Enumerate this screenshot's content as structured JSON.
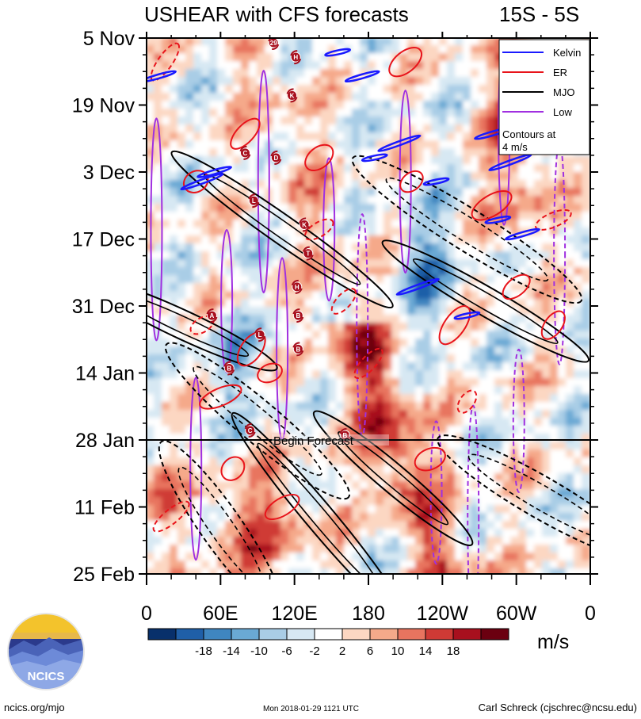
{
  "chart_data": {
    "type": "heatmap",
    "title": "USHEAR with CFS forecasts",
    "region": "15S - 5S",
    "y_labels": [
      "5 Nov",
      "19 Nov",
      "3 Dec",
      "17 Dec",
      "31 Dec",
      "14 Jan",
      "28 Jan",
      "11 Feb",
      "25 Feb"
    ],
    "x_labels": [
      "0",
      "60E",
      "120E",
      "180",
      "120W",
      "60W",
      "0"
    ],
    "x_range": [
      0,
      360
    ],
    "x_ticks": [
      0,
      60,
      120,
      180,
      240,
      300,
      360
    ],
    "y_range_days": [
      0,
      112
    ],
    "y_ticks_days": [
      0,
      14,
      28,
      42,
      56,
      70,
      84,
      98,
      112
    ],
    "forecast_line_day": 84,
    "forecast_label": "Begin Forecast",
    "legend": {
      "entries": [
        {
          "label": "Kelvin",
          "color": "#1a1aff"
        },
        {
          "label": "ER",
          "color": "#e8141b"
        },
        {
          "label": "MJO",
          "color": "#000000"
        },
        {
          "label": "Low",
          "color": "#a030e0"
        }
      ],
      "note": "Contours at 4 m/s",
      "location": "top-right"
    },
    "colorbar": {
      "units": "m/s",
      "tick_labels": [
        "-18",
        "-14",
        "-10",
        "-6",
        "-2",
        "2",
        "6",
        "10",
        "14",
        "18"
      ],
      "colors": [
        "#08306b",
        "#1f5fa8",
        "#3f86c0",
        "#6aa9d4",
        "#a9cde6",
        "#d7e8f3",
        "#ffffff",
        "#fcd7c2",
        "#f5a98a",
        "#e8745f",
        "#cf3a35",
        "#a8101e",
        "#6b0010"
      ]
    },
    "cyclones": [
      {
        "label": "29",
        "lon": 103,
        "day": 1
      },
      {
        "label": "H",
        "lon": 121,
        "day": 4
      },
      {
        "label": "K",
        "lon": 118,
        "day": 12
      },
      {
        "label": "C",
        "lon": 80,
        "day": 24
      },
      {
        "label": "D",
        "lon": 105,
        "day": 25
      },
      {
        "label": "L",
        "lon": 87,
        "day": 34
      },
      {
        "label": "K",
        "lon": 128,
        "day": 39
      },
      {
        "label": "T",
        "lon": 131,
        "day": 45
      },
      {
        "label": "H",
        "lon": 122,
        "day": 52
      },
      {
        "label": "A",
        "lon": 53,
        "day": 58
      },
      {
        "label": "B",
        "lon": 123,
        "day": 58
      },
      {
        "label": "L",
        "lon": 92,
        "day": 62
      },
      {
        "label": "B",
        "lon": 123,
        "day": 65
      },
      {
        "label": "B",
        "lon": 67,
        "day": 69
      },
      {
        "label": "C",
        "lon": 84,
        "day": 82
      },
      {
        "label": "B",
        "lon": 161,
        "day": 83
      }
    ]
  },
  "footer": {
    "logo_text": "NCICS",
    "url": "ncics.org/mjo",
    "timestamp": "Mon 2018-01-29 1121 UTC",
    "credit": "Carl Schreck (cjschrec@ncsu.edu)"
  }
}
